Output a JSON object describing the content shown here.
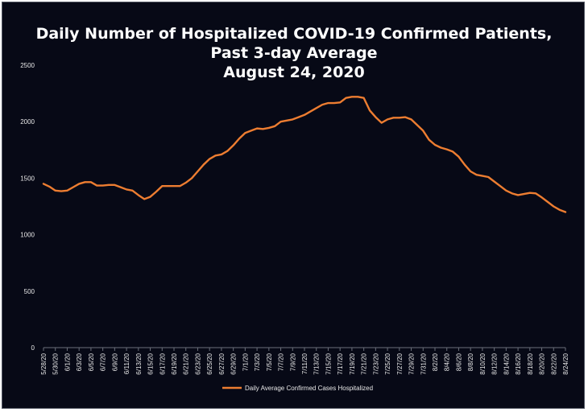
{
  "chart_data": {
    "type": "line",
    "title": [
      "Daily Number of Hospitalized COVID-19 Confirmed Patients,",
      "Past 3-day Average",
      "August 24, 2020"
    ],
    "xlabel": "",
    "ylabel": "",
    "ylim": [
      0,
      2500
    ],
    "y_ticks": [
      0,
      500,
      1000,
      1500,
      2000,
      2500
    ],
    "grid": false,
    "legend_position": "bottom",
    "x_tick_labels": [
      "5/28/20",
      "5/30/20",
      "6/1/20",
      "6/3/20",
      "6/5/20",
      "6/7/20",
      "6/9/20",
      "6/11/20",
      "6/13/20",
      "6/15/20",
      "6/17/20",
      "6/19/20",
      "6/21/20",
      "6/23/20",
      "6/25/20",
      "6/27/20",
      "6/29/20",
      "7/1/20",
      "7/3/20",
      "7/5/20",
      "7/7/20",
      "7/9/20",
      "7/11/20",
      "7/13/20",
      "7/15/20",
      "7/17/20",
      "7/19/20",
      "7/21/20",
      "7/23/20",
      "7/25/20",
      "7/27/20",
      "7/29/20",
      "7/31/20",
      "8/2/20",
      "8/4/20",
      "8/6/20",
      "8/8/20",
      "8/10/20",
      "8/12/20",
      "8/14/20",
      "8/16/20",
      "8/18/20",
      "8/20/20",
      "8/22/20",
      "8/24/20"
    ],
    "series": [
      {
        "name": "Daily Average Confirmed Cases Hospitalized",
        "color": "#ed7d31",
        "x": [
          "5/28/20",
          "5/29/20",
          "5/30/20",
          "5/31/20",
          "6/1/20",
          "6/2/20",
          "6/3/20",
          "6/4/20",
          "6/5/20",
          "6/6/20",
          "6/7/20",
          "6/8/20",
          "6/9/20",
          "6/10/20",
          "6/11/20",
          "6/12/20",
          "6/13/20",
          "6/14/20",
          "6/15/20",
          "6/16/20",
          "6/17/20",
          "6/18/20",
          "6/19/20",
          "6/20/20",
          "6/21/20",
          "6/22/20",
          "6/23/20",
          "6/24/20",
          "6/25/20",
          "6/26/20",
          "6/27/20",
          "6/28/20",
          "6/29/20",
          "6/30/20",
          "7/1/20",
          "7/2/20",
          "7/3/20",
          "7/4/20",
          "7/5/20",
          "7/6/20",
          "7/7/20",
          "7/8/20",
          "7/9/20",
          "7/10/20",
          "7/11/20",
          "7/12/20",
          "7/13/20",
          "7/14/20",
          "7/15/20",
          "7/16/20",
          "7/17/20",
          "7/18/20",
          "7/19/20",
          "7/20/20",
          "7/21/20",
          "7/22/20",
          "7/23/20",
          "7/24/20",
          "7/25/20",
          "7/26/20",
          "7/27/20",
          "7/28/20",
          "7/29/20",
          "7/30/20",
          "7/31/20",
          "8/1/20",
          "8/2/20",
          "8/3/20",
          "8/4/20",
          "8/5/20",
          "8/6/20",
          "8/7/20",
          "8/8/20",
          "8/9/20",
          "8/10/20",
          "8/11/20",
          "8/12/20",
          "8/13/20",
          "8/14/20",
          "8/15/20",
          "8/16/20",
          "8/17/20",
          "8/18/20",
          "8/19/20",
          "8/20/20",
          "8/21/20",
          "8/22/20",
          "8/23/20",
          "8/24/20"
        ],
        "values": [
          1450,
          1425,
          1390,
          1385,
          1390,
          1420,
          1450,
          1465,
          1465,
          1435,
          1435,
          1440,
          1440,
          1420,
          1400,
          1390,
          1350,
          1315,
          1335,
          1380,
          1430,
          1430,
          1430,
          1430,
          1460,
          1500,
          1560,
          1620,
          1670,
          1700,
          1710,
          1740,
          1790,
          1850,
          1900,
          1920,
          1940,
          1935,
          1945,
          1960,
          2000,
          2010,
          2020,
          2040,
          2060,
          2090,
          2120,
          2150,
          2165,
          2165,
          2170,
          2210,
          2220,
          2220,
          2210,
          2100,
          2040,
          1990,
          2020,
          2035,
          2035,
          2040,
          2020,
          1970,
          1920,
          1840,
          1795,
          1770,
          1755,
          1735,
          1690,
          1620,
          1560,
          1530,
          1520,
          1510,
          1470,
          1430,
          1390,
          1365,
          1350,
          1360,
          1370,
          1365,
          1330,
          1290,
          1250,
          1220,
          1200
        ]
      }
    ]
  }
}
